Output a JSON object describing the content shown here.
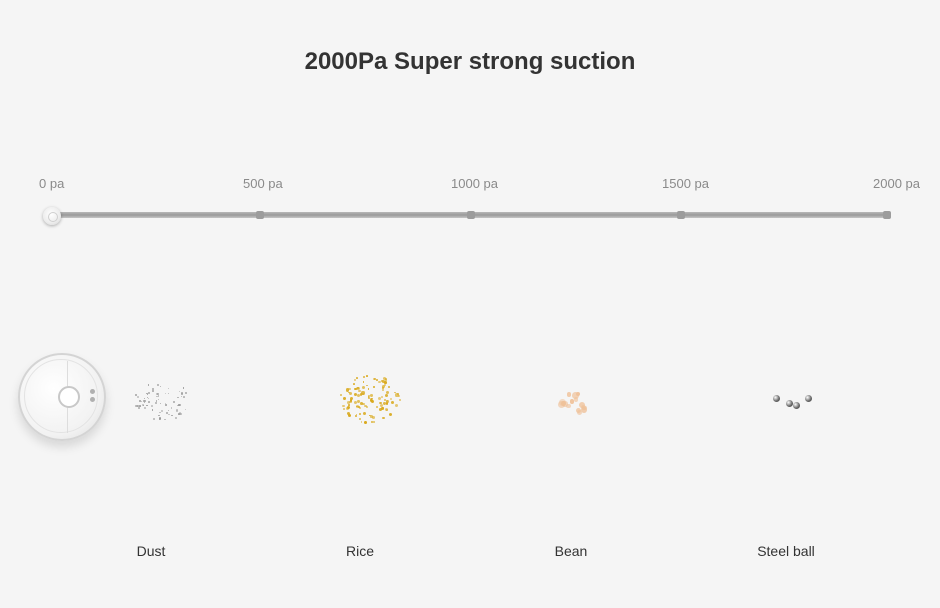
{
  "title": "2000Pa Super strong suction",
  "scale": {
    "ticks": [
      {
        "label": "0 pa",
        "value": 0
      },
      {
        "label": "500 pa",
        "value": 500
      },
      {
        "label": "1000 pa",
        "value": 1000
      },
      {
        "label": "1500 pa",
        "value": 1500
      },
      {
        "label": "2000 pa",
        "value": 2000
      }
    ],
    "min": 0,
    "max": 2000,
    "current": 0
  },
  "items": [
    {
      "label": "Dust",
      "color": "#9a9a9a"
    },
    {
      "label": "Rice",
      "color": "#d9a91c"
    },
    {
      "label": "Bean",
      "color": "#efc29a"
    },
    {
      "label": "Steel ball",
      "color": "#6e6e6e"
    }
  ]
}
